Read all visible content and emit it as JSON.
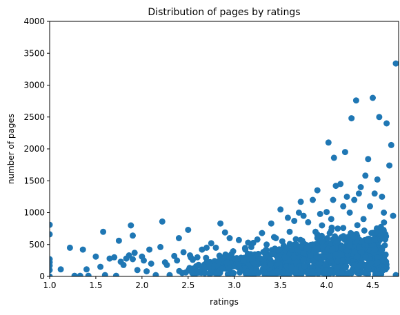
{
  "chart_data": {
    "type": "scatter",
    "title": "Distribution of pages by ratings",
    "xlabel": "ratings",
    "ylabel": "number of pages",
    "xlim": [
      1.0,
      4.78
    ],
    "ylim": [
      0,
      4000
    ],
    "xticks": [
      1.0,
      1.5,
      2.0,
      2.5,
      3.0,
      3.5,
      4.0,
      4.5
    ],
    "xtick_labels": [
      "1.0",
      "1.5",
      "2.0",
      "2.5",
      "3.0",
      "3.5",
      "4.0",
      "4.5"
    ],
    "yticks": [
      0,
      500,
      1000,
      1500,
      2000,
      2500,
      3000,
      3500,
      4000
    ],
    "ytick_labels": [
      "0",
      "500",
      "1000",
      "1500",
      "2000",
      "2500",
      "3000",
      "3500",
      "4000"
    ],
    "grid": false,
    "marker_color": "#1f77b4",
    "series": [
      {
        "name": "pages",
        "x": [
          1.0,
          1.0,
          1.0,
          1.0,
          1.0,
          1.0,
          1.0,
          1.12,
          1.22,
          1.27,
          1.33,
          1.36,
          1.4,
          1.42,
          1.5,
          1.55,
          1.58,
          1.6,
          1.65,
          1.7,
          1.72,
          1.75,
          1.77,
          1.8,
          1.83,
          1.86,
          1.88,
          1.9,
          1.9,
          1.92,
          1.95,
          2.0,
          2.02,
          2.05,
          2.08,
          2.1,
          2.15,
          2.2,
          2.22,
          2.25,
          2.27,
          2.3,
          2.35,
          2.38,
          2.4,
          2.45,
          2.5,
          2.52,
          2.55,
          2.6,
          2.65,
          2.7,
          2.75,
          2.8,
          2.85,
          2.87,
          2.9,
          2.92,
          2.95,
          2.97,
          3.05,
          3.1,
          3.12,
          3.15,
          3.2,
          3.25,
          3.3,
          3.35,
          3.4,
          3.45,
          3.47,
          3.5,
          3.52,
          3.55,
          3.58,
          3.6,
          3.65,
          3.7,
          3.72,
          3.75,
          3.8,
          3.85,
          3.88,
          3.9,
          3.93,
          3.95,
          4.0,
          4.02,
          4.05,
          4.07,
          4.08,
          4.1,
          4.12,
          4.15,
          4.18,
          4.2,
          4.22,
          4.25,
          4.27,
          4.3,
          4.32,
          4.35,
          4.37,
          4.4,
          4.42,
          4.45,
          4.47,
          4.5,
          4.52,
          4.55,
          4.57,
          4.6,
          4.62,
          4.65,
          4.68,
          4.7,
          4.72,
          4.75,
          4.75,
          4.55,
          4.45,
          4.3,
          4.33,
          4.38,
          4.42,
          4.52,
          4.6,
          4.48,
          4.3,
          4.25,
          4.1,
          4.05,
          4.28,
          3.95,
          3.85,
          4.22,
          3.9,
          3.75
        ],
        "y": [
          810,
          660,
          270,
          220,
          170,
          100,
          0,
          110,
          450,
          10,
          10,
          420,
          110,
          10,
          310,
          150,
          700,
          20,
          280,
          300,
          10,
          560,
          230,
          180,
          280,
          330,
          800,
          640,
          270,
          370,
          100,
          310,
          250,
          80,
          420,
          200,
          20,
          460,
          860,
          220,
          180,
          20,
          320,
          250,
          600,
          380,
          730,
          330,
          260,
          300,
          420,
          450,
          520,
          450,
          830,
          120,
          690,
          220,
          600,
          350,
          570,
          250,
          420,
          530,
          280,
          580,
          680,
          500,
          830,
          600,
          260,
          1050,
          550,
          300,
          920,
          700,
          870,
          1000,
          1170,
          950,
          850,
          1200,
          700,
          1350,
          980,
          800,
          1010,
          2100,
          900,
          1200,
          1860,
          1420,
          750,
          1450,
          1100,
          1950,
          1250,
          1000,
          2480,
          1200,
          2760,
          1300,
          1400,
          900,
          1580,
          1840,
          1100,
          2800,
          1300,
          1520,
          2500,
          1250,
          1000,
          2400,
          1740,
          2060,
          950,
          3340,
          20,
          220,
          130,
          180,
          600,
          380,
          300,
          580,
          420,
          210,
          620,
          480,
          350,
          720,
          650,
          560,
          500,
          400,
          300,
          260
        ]
      }
    ]
  }
}
